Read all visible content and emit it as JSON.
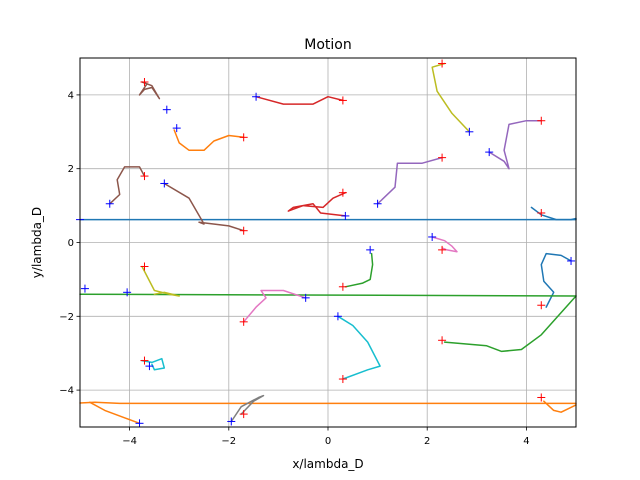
{
  "chart_data": {
    "type": "line",
    "title": "Motion",
    "xlabel": "x/lambda_D",
    "ylabel": "y/lambda_D",
    "xlim": [
      -5,
      5
    ],
    "ylim": [
      -5,
      5
    ],
    "xticks": [
      -4,
      -2,
      0,
      2,
      4
    ],
    "yticks": [
      -4,
      -2,
      0,
      2,
      4
    ],
    "xtick_labels": [
      "−4",
      "−2",
      "0",
      "2",
      "4"
    ],
    "ytick_labels": [
      "−4",
      "−2",
      "0",
      "2",
      "4"
    ],
    "grid": true,
    "marker_colors": {
      "start": "#0000ff",
      "end": "#ff0000"
    },
    "series": [
      {
        "color": "#1f77b4",
        "points": [
          [
            -5,
            0.62
          ],
          [
            5,
            0.62
          ]
        ]
      },
      {
        "color": "#1f77b4",
        "points": [
          [
            4.1,
            0.95
          ],
          [
            4.3,
            0.75
          ],
          [
            4.6,
            0.62
          ],
          [
            4.9,
            0.62
          ],
          [
            5,
            0.65
          ]
        ]
      },
      {
        "color": "#1f77b4",
        "points": [
          [
            4.9,
            -0.5
          ],
          [
            4.7,
            -0.35
          ],
          [
            4.4,
            -0.3
          ],
          [
            4.3,
            -0.6
          ],
          [
            4.35,
            -1.05
          ],
          [
            4.55,
            -1.35
          ],
          [
            4.4,
            -1.75
          ]
        ]
      },
      {
        "color": "#ff7f0e",
        "points": [
          [
            -5,
            -4.35
          ],
          [
            -4.7,
            -4.33
          ],
          [
            -4.2,
            -4.36
          ],
          [
            5,
            -4.36
          ]
        ]
      },
      {
        "color": "#ff7f0e",
        "points": [
          [
            4.35,
            -4.3
          ],
          [
            4.55,
            -4.55
          ],
          [
            4.7,
            -4.6
          ],
          [
            4.85,
            -4.5
          ],
          [
            5,
            -4.4
          ]
        ]
      },
      {
        "color": "#ff7f0e",
        "points": [
          [
            -4.8,
            -4.33
          ],
          [
            -4.5,
            -4.55
          ],
          [
            -4.1,
            -4.75
          ],
          [
            -3.8,
            -4.9
          ]
        ]
      },
      {
        "color": "#ff7f0e",
        "points": [
          [
            -1.7,
            2.85
          ],
          [
            -2.0,
            2.9
          ],
          [
            -2.3,
            2.75
          ],
          [
            -2.5,
            2.5
          ],
          [
            -2.8,
            2.5
          ],
          [
            -3.0,
            2.7
          ],
          [
            -3.1,
            3.05
          ]
        ]
      },
      {
        "color": "#2ca02c",
        "points": [
          [
            -5,
            -1.4
          ],
          [
            5,
            -1.45
          ]
        ]
      },
      {
        "color": "#2ca02c",
        "points": [
          [
            0.35,
            -1.2
          ],
          [
            0.7,
            -1.1
          ],
          [
            0.85,
            -1.0
          ],
          [
            0.9,
            -0.6
          ],
          [
            0.88,
            -0.3
          ]
        ]
      },
      {
        "color": "#2ca02c",
        "points": [
          [
            2.35,
            -2.7
          ],
          [
            3.2,
            -2.8
          ],
          [
            3.5,
            -2.95
          ],
          [
            3.9,
            -2.9
          ],
          [
            4.3,
            -2.5
          ],
          [
            5,
            -1.45
          ]
        ]
      },
      {
        "color": "#d62728",
        "points": [
          [
            -1.45,
            3.95
          ],
          [
            -0.9,
            3.75
          ],
          [
            -0.3,
            3.75
          ],
          [
            0.0,
            3.95
          ],
          [
            0.3,
            3.85
          ]
        ]
      },
      {
        "color": "#d62728",
        "points": [
          [
            0.35,
            1.35
          ],
          [
            0.1,
            1.2
          ],
          [
            -0.1,
            0.95
          ],
          [
            -0.5,
            1.0
          ],
          [
            -0.8,
            0.85
          ],
          [
            -0.7,
            0.95
          ],
          [
            -0.3,
            1.05
          ],
          [
            -0.15,
            0.8
          ],
          [
            0.35,
            0.72
          ]
        ]
      },
      {
        "color": "#9467bd",
        "points": [
          [
            1.0,
            1.05
          ],
          [
            1.35,
            1.5
          ],
          [
            1.4,
            2.15
          ],
          [
            1.9,
            2.15
          ],
          [
            2.3,
            2.3
          ]
        ]
      },
      {
        "color": "#9467bd",
        "points": [
          [
            3.25,
            2.45
          ],
          [
            3.55,
            2.2
          ],
          [
            3.65,
            2.0
          ],
          [
            3.55,
            2.5
          ],
          [
            3.65,
            3.2
          ],
          [
            4.0,
            3.3
          ],
          [
            4.3,
            3.3
          ]
        ]
      },
      {
        "color": "#8c564b",
        "points": [
          [
            -3.3,
            1.6
          ],
          [
            -2.8,
            1.2
          ],
          [
            -2.5,
            0.5
          ],
          [
            -2.6,
            0.55
          ],
          [
            -2.0,
            0.45
          ],
          [
            -1.7,
            0.32
          ]
        ]
      },
      {
        "color": "#8c564b",
        "points": [
          [
            -4.4,
            1.05
          ],
          [
            -4.2,
            1.3
          ],
          [
            -4.25,
            1.7
          ],
          [
            -4.1,
            2.05
          ],
          [
            -3.8,
            2.05
          ],
          [
            -3.7,
            1.8
          ]
        ]
      },
      {
        "color": "#8c564b",
        "points": [
          [
            -3.75,
            4.35
          ],
          [
            -3.55,
            4.25
          ],
          [
            -3.4,
            3.9
          ],
          [
            -3.55,
            4.2
          ],
          [
            -3.7,
            4.15
          ],
          [
            -3.8,
            4.0
          ],
          [
            -3.65,
            4.3
          ]
        ]
      },
      {
        "color": "#e377c2",
        "points": [
          [
            -0.45,
            -1.5
          ],
          [
            -0.9,
            -1.3
          ],
          [
            -1.35,
            -1.3
          ],
          [
            -1.25,
            -1.5
          ],
          [
            -1.45,
            -1.75
          ],
          [
            -1.7,
            -2.15
          ]
        ]
      },
      {
        "color": "#e377c2",
        "points": [
          [
            2.1,
            0.15
          ],
          [
            2.35,
            0.05
          ],
          [
            2.5,
            -0.1
          ],
          [
            2.6,
            -0.25
          ],
          [
            2.4,
            -0.2
          ],
          [
            2.3,
            -0.15
          ]
        ]
      },
      {
        "color": "#7f7f7f",
        "points": [
          [
            -1.95,
            -4.85
          ],
          [
            -1.75,
            -4.45
          ],
          [
            -1.4,
            -4.2
          ],
          [
            -1.3,
            -4.15
          ],
          [
            -1.5,
            -4.3
          ],
          [
            -1.75,
            -4.65
          ]
        ]
      },
      {
        "color": "#bcbd22",
        "points": [
          [
            2.85,
            3.0
          ],
          [
            2.5,
            3.5
          ],
          [
            2.2,
            4.1
          ],
          [
            2.1,
            4.75
          ],
          [
            2.35,
            4.85
          ]
        ]
      },
      {
        "color": "#bcbd22",
        "points": [
          [
            -3.75,
            -0.65
          ],
          [
            -3.5,
            -1.3
          ],
          [
            -3.2,
            -1.4
          ],
          [
            -3.0,
            -1.45
          ],
          [
            -3.3,
            -1.35
          ],
          [
            -3.5,
            -1.4
          ]
        ]
      },
      {
        "color": "#17becf",
        "points": [
          [
            0.2,
            -2.0
          ],
          [
            0.5,
            -2.25
          ],
          [
            0.8,
            -2.7
          ],
          [
            1.05,
            -3.35
          ],
          [
            0.8,
            -3.45
          ],
          [
            0.3,
            -3.7
          ]
        ]
      },
      {
        "color": "#17becf",
        "points": [
          [
            -3.75,
            -3.2
          ],
          [
            -3.55,
            -3.25
          ],
          [
            -3.35,
            -3.15
          ],
          [
            -3.3,
            -3.4
          ],
          [
            -3.5,
            -3.45
          ],
          [
            -3.55,
            -3.3
          ]
        ]
      }
    ],
    "start_markers": [
      [
        -5,
        0.62
      ],
      [
        -4.9,
        -1.25
      ],
      [
        -4.4,
        1.05
      ],
      [
        -4.05,
        -1.35
      ],
      [
        -3.8,
        -4.9
      ],
      [
        -3.6,
        -3.35
      ],
      [
        -3.3,
        1.6
      ],
      [
        -3.25,
        3.6
      ],
      [
        -3.05,
        3.1
      ],
      [
        -1.95,
        -4.85
      ],
      [
        -1.45,
        3.95
      ],
      [
        -0.45,
        -1.5
      ],
      [
        0.2,
        -2.0
      ],
      [
        0.35,
        0.72
      ],
      [
        0.85,
        -0.2
      ],
      [
        1.0,
        1.05
      ],
      [
        2.1,
        0.15
      ],
      [
        2.85,
        3.0
      ],
      [
        3.25,
        2.45
      ],
      [
        4.9,
        -0.5
      ]
    ],
    "end_markers": [
      [
        -3.7,
        4.35
      ],
      [
        -3.7,
        1.8
      ],
      [
        -3.7,
        -0.65
      ],
      [
        -3.7,
        -3.2
      ],
      [
        -1.7,
        2.85
      ],
      [
        -1.7,
        0.32
      ],
      [
        -1.7,
        -2.15
      ],
      [
        -1.7,
        -4.65
      ],
      [
        0.3,
        3.85
      ],
      [
        0.3,
        1.35
      ],
      [
        0.3,
        -1.2
      ],
      [
        0.3,
        -3.7
      ],
      [
        2.3,
        4.85
      ],
      [
        2.3,
        2.3
      ],
      [
        2.3,
        -0.2
      ],
      [
        2.3,
        -2.65
      ],
      [
        4.3,
        3.3
      ],
      [
        4.3,
        0.8
      ],
      [
        4.3,
        -1.7
      ],
      [
        4.3,
        -4.2
      ]
    ]
  }
}
